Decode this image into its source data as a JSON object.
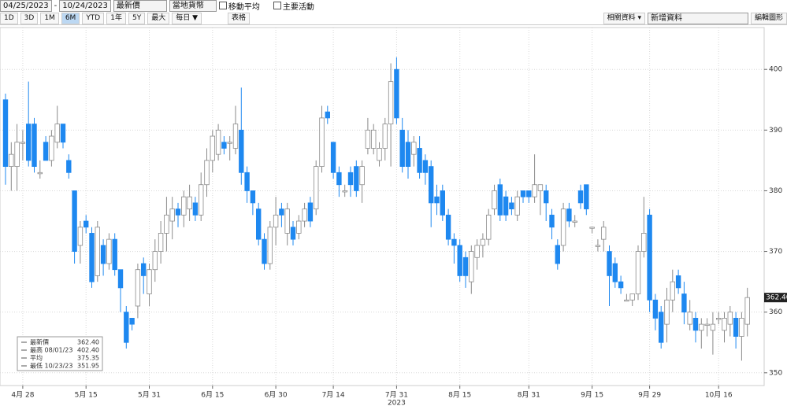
{
  "toolbar": {
    "start_date": "04/25/2023",
    "end_date": "10/24/2023",
    "field": "最新價",
    "currency": "當地貨幣",
    "moving_average": "移動平均",
    "key_events": "主要活動",
    "ranges": [
      "1D",
      "3D",
      "1M",
      "6M",
      "YTD",
      "1年",
      "5Y",
      "最大"
    ],
    "active_range": 3,
    "frequency": "每日 ▼",
    "table": "表格",
    "related": "相關資料 ▾",
    "add_data": "新增資料",
    "edit_chart": "編輯圖形"
  },
  "chart_data": {
    "type": "candlestick",
    "x_year_label": "2023",
    "up_color": "#ffffff",
    "up_edge": "#8a8a8a",
    "down_color": "#1e88f0",
    "ylim": [
      347.9,
      406.9
    ],
    "yticks": [
      350,
      360,
      370,
      380,
      390,
      400
    ],
    "grid": true,
    "last_price_label": "362.40",
    "legend": [
      {
        "label": "最新價",
        "value": "362.40"
      },
      {
        "label": "最高 08/01/23",
        "value": "402.40"
      },
      {
        "label": "平均",
        "value": "375.35"
      },
      {
        "label": "最低 10/23/23",
        "value": "351.95"
      }
    ],
    "categories": [
      null,
      null,
      null,
      "4月 28",
      null,
      null,
      null,
      null,
      null,
      null,
      null,
      null,
      null,
      null,
      "5月 15",
      null,
      null,
      null,
      null,
      null,
      null,
      null,
      null,
      null,
      null,
      "5月 31",
      null,
      null,
      null,
      null,
      null,
      null,
      null,
      null,
      null,
      null,
      "6月 15",
      null,
      null,
      null,
      null,
      null,
      null,
      null,
      null,
      null,
      null,
      "6月 30",
      null,
      null,
      null,
      null,
      null,
      null,
      null,
      null,
      null,
      "7月 14",
      null,
      null,
      null,
      null,
      null,
      null,
      null,
      null,
      null,
      null,
      "7月 31",
      null,
      null,
      null,
      null,
      null,
      null,
      null,
      null,
      null,
      null,
      "8月 15",
      null,
      null,
      null,
      null,
      null,
      null,
      null,
      null,
      null,
      null,
      null,
      "8月 31",
      null,
      null,
      null,
      null,
      null,
      null,
      null,
      null,
      null,
      null,
      "9月 15",
      null,
      null,
      null,
      null,
      null,
      null,
      null,
      null,
      null,
      "9月 29",
      null,
      null,
      null,
      null,
      null,
      null,
      null,
      null,
      null,
      null,
      null,
      "10月 16",
      null,
      null,
      null,
      null,
      null
    ],
    "ohlc": [
      [
        395,
        396,
        381,
        384
      ],
      [
        384,
        388,
        380,
        386
      ],
      [
        384,
        391,
        380,
        388
      ],
      [
        388,
        390,
        385,
        388
      ],
      [
        391,
        398,
        384,
        385
      ],
      [
        391,
        392,
        383,
        384
      ],
      [
        383,
        385,
        382,
        383
      ],
      [
        388,
        389,
        385,
        385
      ],
      [
        385,
        390,
        384,
        389
      ],
      [
        388,
        394,
        387,
        391
      ],
      [
        391,
        391,
        387,
        388
      ],
      [
        385,
        386,
        382,
        383
      ],
      [
        380,
        380,
        368,
        370
      ],
      [
        371,
        375,
        368,
        374
      ],
      [
        375,
        376,
        373,
        374
      ],
      [
        373,
        374,
        364,
        365
      ],
      [
        366,
        375,
        365,
        374
      ],
      [
        371,
        372,
        366,
        368
      ],
      [
        368,
        373,
        367,
        372
      ],
      [
        372,
        373,
        366,
        367
      ],
      [
        367,
        367,
        360,
        364
      ],
      [
        360,
        361,
        354,
        355
      ],
      [
        359,
        359,
        357,
        358
      ],
      [
        361,
        368,
        359,
        367
      ],
      [
        368,
        369,
        363,
        366
      ],
      [
        363,
        368,
        361,
        367
      ],
      [
        367,
        372,
        365,
        370
      ],
      [
        370,
        375,
        368,
        373
      ],
      [
        373,
        379,
        370,
        376
      ],
      [
        375,
        379,
        372,
        377
      ],
      [
        377,
        378,
        374,
        376
      ],
      [
        376,
        380,
        374,
        379
      ],
      [
        377,
        381,
        375,
        379
      ],
      [
        378,
        379,
        375,
        376
      ],
      [
        376,
        383,
        375,
        381
      ],
      [
        381,
        387,
        379,
        385
      ],
      [
        385,
        390,
        383,
        389
      ],
      [
        386,
        391,
        385,
        390
      ],
      [
        388,
        389,
        386,
        387
      ],
      [
        388,
        389,
        385,
        388
      ],
      [
        387,
        394,
        386,
        391
      ],
      [
        390,
        397,
        381,
        383
      ],
      [
        383,
        384,
        378,
        380
      ],
      [
        380,
        380,
        376,
        378
      ],
      [
        377,
        378,
        371,
        372
      ],
      [
        372,
        373,
        367,
        368
      ],
      [
        368,
        375,
        367,
        374
      ],
      [
        374,
        379,
        371,
        376
      ],
      [
        377,
        378,
        374,
        376
      ],
      [
        373,
        378,
        371,
        377
      ],
      [
        374,
        375,
        371,
        372
      ],
      [
        373,
        376,
        372,
        375
      ],
      [
        375,
        378,
        374,
        377
      ],
      [
        378,
        379,
        374,
        375
      ],
      [
        377,
        385,
        376,
        384
      ],
      [
        384,
        394,
        383,
        392
      ],
      [
        393,
        394,
        391,
        392
      ],
      [
        388,
        388,
        382,
        383
      ],
      [
        383,
        384,
        379,
        381
      ],
      [
        380,
        381,
        379,
        380
      ],
      [
        383,
        384,
        379,
        381
      ],
      [
        384,
        385,
        379,
        380
      ],
      [
        381,
        385,
        378,
        384
      ],
      [
        387,
        392,
        386,
        390
      ],
      [
        387,
        391,
        386,
        390
      ],
      [
        385,
        388,
        384,
        387
      ],
      [
        387,
        392,
        385,
        391
      ],
      [
        391,
        401,
        384,
        398
      ],
      [
        400,
        402,
        391,
        392
      ],
      [
        390,
        392,
        383,
        384
      ],
      [
        388,
        390,
        382,
        384
      ],
      [
        386,
        389,
        384,
        388
      ],
      [
        387,
        389,
        382,
        383
      ],
      [
        385,
        386,
        381,
        383
      ],
      [
        384,
        385,
        374,
        378
      ],
      [
        379,
        381,
        376,
        378
      ],
      [
        380,
        381,
        375,
        376
      ],
      [
        376,
        377,
        371,
        372
      ],
      [
        372,
        373,
        368,
        371
      ],
      [
        371,
        372,
        365,
        366
      ],
      [
        369,
        370,
        364,
        366
      ],
      [
        365,
        371,
        363,
        370
      ],
      [
        369,
        372,
        367,
        371
      ],
      [
        371,
        373,
        369,
        372
      ],
      [
        372,
        377,
        371,
        376
      ],
      [
        377,
        381,
        376,
        380
      ],
      [
        381,
        382,
        375,
        376
      ],
      [
        379,
        380,
        375,
        376
      ],
      [
        378,
        379,
        376,
        377
      ],
      [
        376,
        380,
        375,
        379
      ],
      [
        380,
        380,
        378,
        379
      ],
      [
        380,
        380,
        378,
        379
      ],
      [
        379,
        386,
        378,
        381
      ],
      [
        380,
        381,
        376,
        381
      ],
      [
        380,
        381,
        375,
        378
      ],
      [
        376,
        377,
        372,
        374
      ],
      [
        371,
        372,
        367,
        368
      ],
      [
        371,
        378,
        370,
        377
      ],
      [
        377,
        378,
        374,
        375
      ],
      [
        375,
        376,
        374,
        375
      ],
      [
        380,
        381,
        377,
        378
      ],
      [
        381,
        381,
        376,
        377
      ],
      [
        374,
        374,
        373,
        374
      ],
      [
        371,
        372,
        370,
        371
      ],
      [
        372,
        375,
        370,
        374
      ],
      [
        370,
        371,
        361,
        366
      ],
      [
        368,
        369,
        364,
        365
      ],
      [
        365,
        366,
        363,
        364
      ],
      [
        362,
        363,
        362,
        362
      ],
      [
        362,
        363,
        361,
        363
      ],
      [
        363,
        371,
        362,
        370
      ],
      [
        370,
        379,
        369,
        373
      ],
      [
        376,
        377,
        360,
        362
      ],
      [
        362,
        363,
        357,
        359
      ],
      [
        360,
        361,
        354,
        355
      ],
      [
        358,
        364,
        355,
        362
      ],
      [
        362,
        367,
        360,
        365
      ],
      [
        366,
        367,
        363,
        364
      ],
      [
        363,
        365,
        358,
        360
      ],
      [
        358,
        362,
        357,
        360
      ],
      [
        359,
        360,
        355,
        357
      ],
      [
        357,
        359,
        354,
        358
      ],
      [
        358,
        359,
        356,
        358
      ],
      [
        357,
        360,
        353,
        358
      ],
      [
        359,
        360,
        358,
        359
      ],
      [
        357,
        360,
        355,
        359
      ],
      [
        358,
        361,
        356,
        360
      ],
      [
        359,
        360,
        354,
        356
      ],
      [
        356,
        360,
        352,
        359
      ],
      [
        358,
        364,
        356,
        362.4
      ]
    ]
  }
}
